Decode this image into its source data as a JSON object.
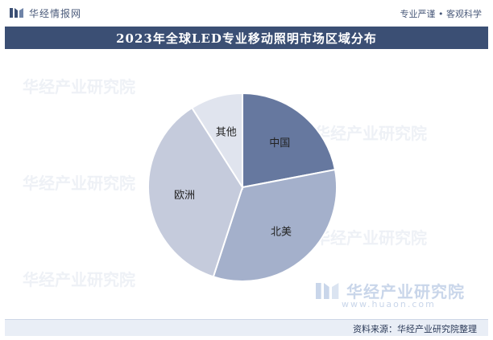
{
  "header": {
    "brand": "华经情报网",
    "brand_icon": "huajing-logo-icon",
    "tagline": "专业严谨 • 客观科学"
  },
  "chart_data": {
    "type": "pie",
    "title": "2023年全球LED专业移动照明市场区域分布",
    "slices": [
      {
        "label": "中国",
        "value": 22,
        "color": "#66789f"
      },
      {
        "label": "北美",
        "value": 33,
        "color": "#a4b0cb"
      },
      {
        "label": "欧洲",
        "value": 36,
        "color": "#c5cbdc"
      },
      {
        "label": "其他",
        "value": 9,
        "color": "#e0e4ee"
      }
    ],
    "start_angle_deg": 0,
    "direction": "clockwise",
    "legend": "none"
  },
  "watermark": {
    "text": "华经产业研究院",
    "url": "www.huaon.com"
  },
  "footer": {
    "source": "资料来源：华经产业研究院整理"
  }
}
